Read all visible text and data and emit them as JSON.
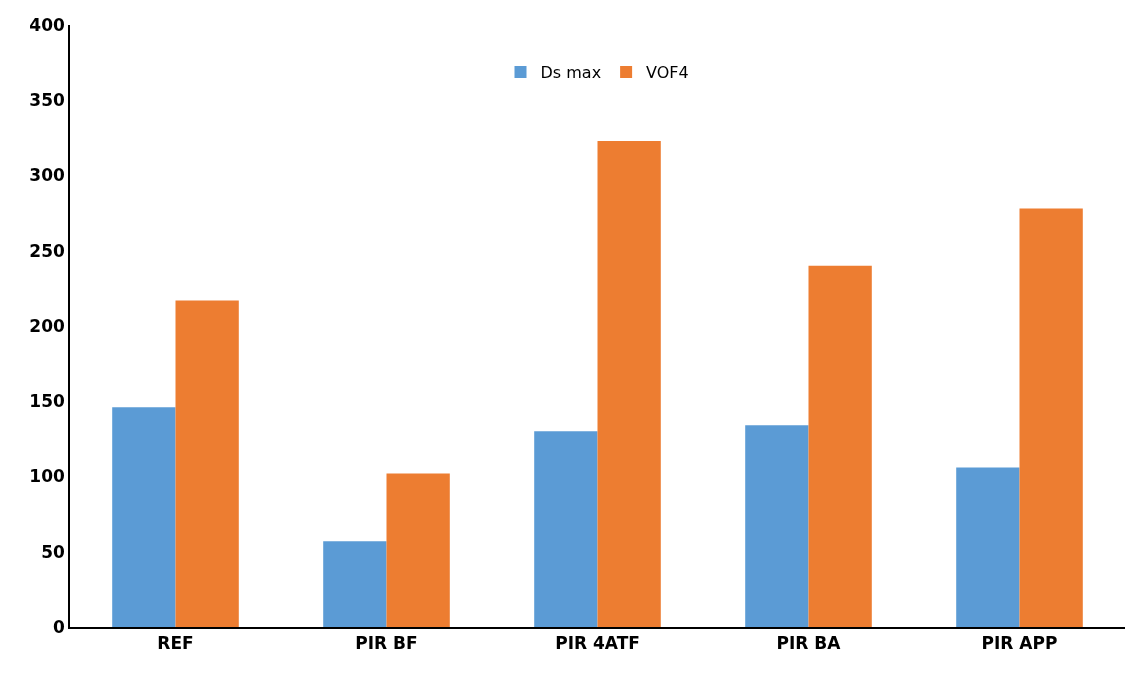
{
  "chart_data": {
    "type": "bar",
    "categories": [
      "REF",
      "PIR BF",
      "PIR 4ATF",
      "PIR BA",
      "PIR APP"
    ],
    "series": [
      {
        "name": "Ds max",
        "color": "#5b9bd5",
        "values": [
          146,
          57,
          130,
          134,
          106
        ]
      },
      {
        "name": "VOF4",
        "color": "#ed7d31",
        "values": [
          217,
          102,
          323,
          240,
          278
        ]
      }
    ],
    "ylim": [
      0,
      400
    ],
    "yticks": [
      0,
      50,
      100,
      150,
      200,
      250,
      300,
      350,
      400
    ],
    "grid": false,
    "legend": "top"
  }
}
